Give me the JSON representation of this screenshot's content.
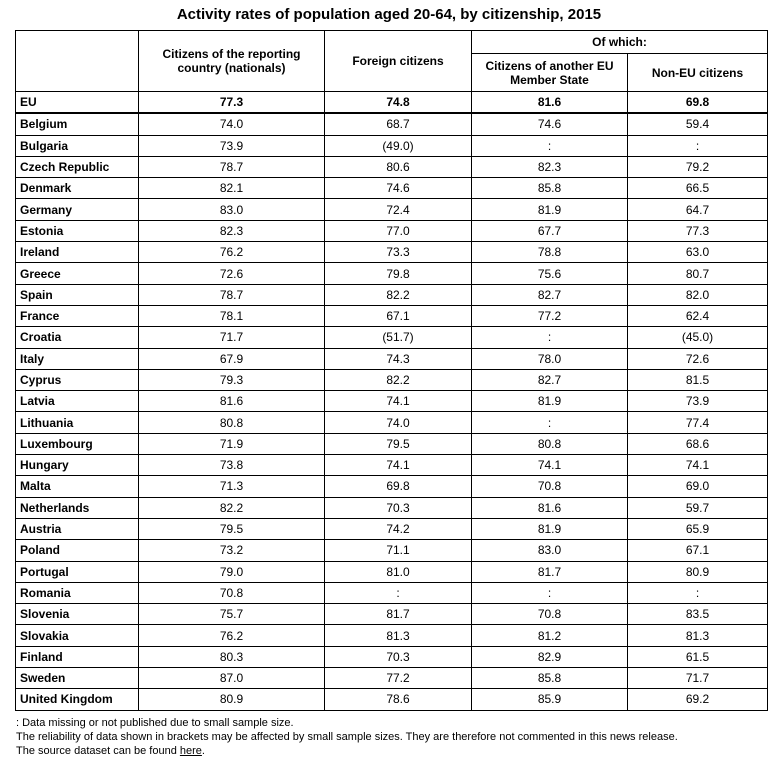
{
  "title": "Activity rates of population aged 20-64, by citizenship, 2015",
  "header": {
    "nationals": "Citizens of the reporting country (nationals)",
    "foreign": "Foreign citizens",
    "of_which": "Of which:",
    "eu_citizens": "Citizens of another EU Member State",
    "non_eu": "Non-EU citizens"
  },
  "rows": [
    {
      "country": "EU",
      "nationals": "77.3",
      "foreign": "74.8",
      "eu": "81.6",
      "non_eu": "69.8"
    },
    {
      "country": "Belgium",
      "nationals": "74.0",
      "foreign": "68.7",
      "eu": "74.6",
      "non_eu": "59.4"
    },
    {
      "country": "Bulgaria",
      "nationals": "73.9",
      "foreign": "(49.0)",
      "eu": ":",
      "non_eu": ":"
    },
    {
      "country": "Czech Republic",
      "nationals": "78.7",
      "foreign": "80.6",
      "eu": "82.3",
      "non_eu": "79.2"
    },
    {
      "country": "Denmark",
      "nationals": "82.1",
      "foreign": "74.6",
      "eu": "85.8",
      "non_eu": "66.5"
    },
    {
      "country": "Germany",
      "nationals": "83.0",
      "foreign": "72.4",
      "eu": "81.9",
      "non_eu": "64.7"
    },
    {
      "country": "Estonia",
      "nationals": "82.3",
      "foreign": "77.0",
      "eu": "67.7",
      "non_eu": "77.3"
    },
    {
      "country": "Ireland",
      "nationals": "76.2",
      "foreign": "73.3",
      "eu": "78.8",
      "non_eu": "63.0"
    },
    {
      "country": "Greece",
      "nationals": "72.6",
      "foreign": "79.8",
      "eu": "75.6",
      "non_eu": "80.7"
    },
    {
      "country": "Spain",
      "nationals": "78.7",
      "foreign": "82.2",
      "eu": "82.7",
      "non_eu": "82.0"
    },
    {
      "country": "France",
      "nationals": "78.1",
      "foreign": "67.1",
      "eu": "77.2",
      "non_eu": "62.4"
    },
    {
      "country": "Croatia",
      "nationals": "71.7",
      "foreign": "(51.7)",
      "eu": ":",
      "non_eu": "(45.0)"
    },
    {
      "country": "Italy",
      "nationals": "67.9",
      "foreign": "74.3",
      "eu": "78.0",
      "non_eu": "72.6"
    },
    {
      "country": "Cyprus",
      "nationals": "79.3",
      "foreign": "82.2",
      "eu": "82.7",
      "non_eu": "81.5"
    },
    {
      "country": "Latvia",
      "nationals": "81.6",
      "foreign": "74.1",
      "eu": "81.9",
      "non_eu": "73.9"
    },
    {
      "country": "Lithuania",
      "nationals": "80.8",
      "foreign": "74.0",
      "eu": ":",
      "non_eu": "77.4"
    },
    {
      "country": "Luxembourg",
      "nationals": "71.9",
      "foreign": "79.5",
      "eu": "80.8",
      "non_eu": "68.6"
    },
    {
      "country": "Hungary",
      "nationals": "73.8",
      "foreign": "74.1",
      "eu": "74.1",
      "non_eu": "74.1"
    },
    {
      "country": "Malta",
      "nationals": "71.3",
      "foreign": "69.8",
      "eu": "70.8",
      "non_eu": "69.0"
    },
    {
      "country": "Netherlands",
      "nationals": "82.2",
      "foreign": "70.3",
      "eu": "81.6",
      "non_eu": "59.7"
    },
    {
      "country": "Austria",
      "nationals": "79.5",
      "foreign": "74.2",
      "eu": "81.9",
      "non_eu": "65.9"
    },
    {
      "country": "Poland",
      "nationals": "73.2",
      "foreign": "71.1",
      "eu": "83.0",
      "non_eu": "67.1"
    },
    {
      "country": "Portugal",
      "nationals": "79.0",
      "foreign": "81.0",
      "eu": "81.7",
      "non_eu": "80.9"
    },
    {
      "country": "Romania",
      "nationals": "70.8",
      "foreign": ":",
      "eu": ":",
      "non_eu": ":"
    },
    {
      "country": "Slovenia",
      "nationals": "75.7",
      "foreign": "81.7",
      "eu": "70.8",
      "non_eu": "83.5"
    },
    {
      "country": "Slovakia",
      "nationals": "76.2",
      "foreign": "81.3",
      "eu": "81.2",
      "non_eu": "81.3"
    },
    {
      "country": "Finland",
      "nationals": "80.3",
      "foreign": "70.3",
      "eu": "82.9",
      "non_eu": "61.5"
    },
    {
      "country": "Sweden",
      "nationals": "87.0",
      "foreign": "77.2",
      "eu": "85.8",
      "non_eu": "71.7"
    },
    {
      "country": "United Kingdom",
      "nationals": "80.9",
      "foreign": "78.6",
      "eu": "85.9",
      "non_eu": "69.2"
    }
  ],
  "notes": {
    "line1": ": Data missing or not published due to small sample size.",
    "line2": "The reliability of data shown in brackets may be affected by small sample sizes. They are therefore not commented in this news release.",
    "line3_prefix": "The source dataset can be found ",
    "line3_link": "here",
    "line3_suffix": "."
  }
}
